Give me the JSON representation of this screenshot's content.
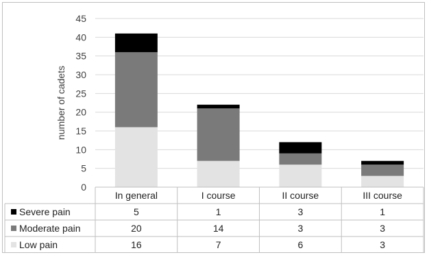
{
  "chart_data": {
    "type": "bar",
    "stacked": true,
    "categories": [
      "In general",
      "I course",
      "II course",
      "III course"
    ],
    "series": [
      {
        "name": "Low pain",
        "color": "#e3e3e3",
        "values": [
          16,
          7,
          6,
          3
        ]
      },
      {
        "name": "Moderate pain",
        "color": "#7a7a7a",
        "values": [
          20,
          14,
          3,
          3
        ]
      },
      {
        "name": "Severe pain",
        "color": "#000000",
        "values": [
          5,
          1,
          3,
          1
        ]
      }
    ],
    "table_rows": [
      "Severe pain",
      "Moderate pain",
      "Low pain"
    ],
    "ylabel": "number of cadets",
    "ylim": [
      0,
      45
    ],
    "yticks": [
      0,
      5,
      10,
      15,
      20,
      25,
      30,
      35,
      40,
      45
    ],
    "grid": true,
    "legend": "data-table"
  }
}
